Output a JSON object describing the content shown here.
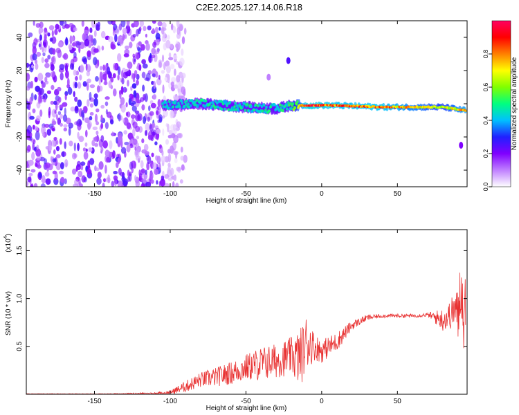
{
  "title": "C2E2.2025.127.14.06.R18",
  "chart_data": [
    {
      "type": "heatmap",
      "xlabel": "Height of straight line (km)",
      "ylabel": "Frequency (Hz)",
      "xlim": [
        -195,
        96
      ],
      "ylim": [
        -50,
        50
      ],
      "x_ticks": [
        -150,
        -100,
        -50,
        0,
        50
      ],
      "y_ticks": [
        -40,
        -20,
        0,
        20,
        40
      ],
      "colorbar": {
        "label": "Normalized spectral amplitude",
        "range": [
          0,
          1
        ],
        "ticks": [
          0.0,
          0.2,
          0.4,
          0.6,
          0.8
        ],
        "colormap": [
          "#ffffff",
          "#c080ff",
          "#8000ff",
          "#2020ff",
          "#00c0ff",
          "#00ff80",
          "#80ff00",
          "#ffff00",
          "#ff8000",
          "#ff0000",
          "#ff0060"
        ]
      },
      "noise_region": {
        "x_range": [
          -195,
          -105
        ],
        "f_range": [
          -50,
          50
        ],
        "amplitude": 0.2
      },
      "ridge": [
        {
          "x": -105,
          "f": -1,
          "amplitude": 0.45
        },
        {
          "x": -80,
          "f": 0,
          "amplitude": 0.5
        },
        {
          "x": -50,
          "f": -2,
          "amplitude": 0.5
        },
        {
          "x": -30,
          "f": -3,
          "amplitude": 0.5
        },
        {
          "x": -20,
          "f": -1,
          "amplitude": 0.55
        },
        {
          "x": -10,
          "f": -1,
          "amplitude": 0.95
        },
        {
          "x": 10,
          "f": -1,
          "amplitude": 0.9
        },
        {
          "x": 40,
          "f": -2,
          "amplitude": 0.9
        },
        {
          "x": 80,
          "f": -2,
          "amplitude": 0.7
        },
        {
          "x": 95,
          "f": -4,
          "amplitude": 0.85
        }
      ],
      "features": [
        {
          "x": -22,
          "f": 26,
          "amplitude": 0.25
        },
        {
          "x": -35,
          "f": 16,
          "amplitude": 0.1
        },
        {
          "x": 92,
          "f": -25,
          "amplitude": 0.2
        }
      ]
    },
    {
      "type": "line",
      "xlabel": "Height of straight line (km)",
      "ylabel": "SNR (10 * v/v)",
      "y_multiplier_base": "(x10",
      "y_multiplier_exp": "4",
      "y_multiplier_close": ")",
      "xlim": [
        -195,
        96
      ],
      "ylim": [
        0,
        1.72
      ],
      "x_ticks": [
        -150,
        -100,
        -50,
        0,
        50
      ],
      "y_ticks": [
        0.5,
        1.0,
        1.5
      ],
      "y_tick_labels": [
        "0.5",
        "1.0",
        "1.5"
      ],
      "color": "#e83030",
      "series": [
        {
          "x": [
            -195,
            -150,
            -110,
            -100,
            -90,
            -80,
            -70,
            -60,
            -50,
            -40,
            -30,
            -20,
            -15,
            -12,
            -10,
            -5,
            0,
            10,
            20,
            30,
            40,
            50,
            60,
            70,
            80,
            85,
            88,
            90,
            92,
            94,
            95
          ],
          "values": [
            0.0,
            0.0,
            0.01,
            0.02,
            0.08,
            0.15,
            0.18,
            0.22,
            0.28,
            0.32,
            0.35,
            0.4,
            0.38,
            0.45,
            0.55,
            0.5,
            0.45,
            0.55,
            0.72,
            0.8,
            0.82,
            0.82,
            0.82,
            0.83,
            0.78,
            0.83,
            0.9,
            0.8,
            1.2,
            0.7,
            1.0
          ],
          "noise": [
            0.003,
            0.003,
            0.01,
            0.02,
            0.06,
            0.08,
            0.1,
            0.12,
            0.14,
            0.18,
            0.18,
            0.2,
            0.3,
            0.3,
            0.3,
            0.15,
            0.12,
            0.1,
            0.05,
            0.03,
            0.02,
            0.02,
            0.02,
            0.02,
            0.12,
            0.15,
            0.2,
            0.3,
            0.35,
            0.3,
            0.3
          ]
        }
      ]
    }
  ]
}
